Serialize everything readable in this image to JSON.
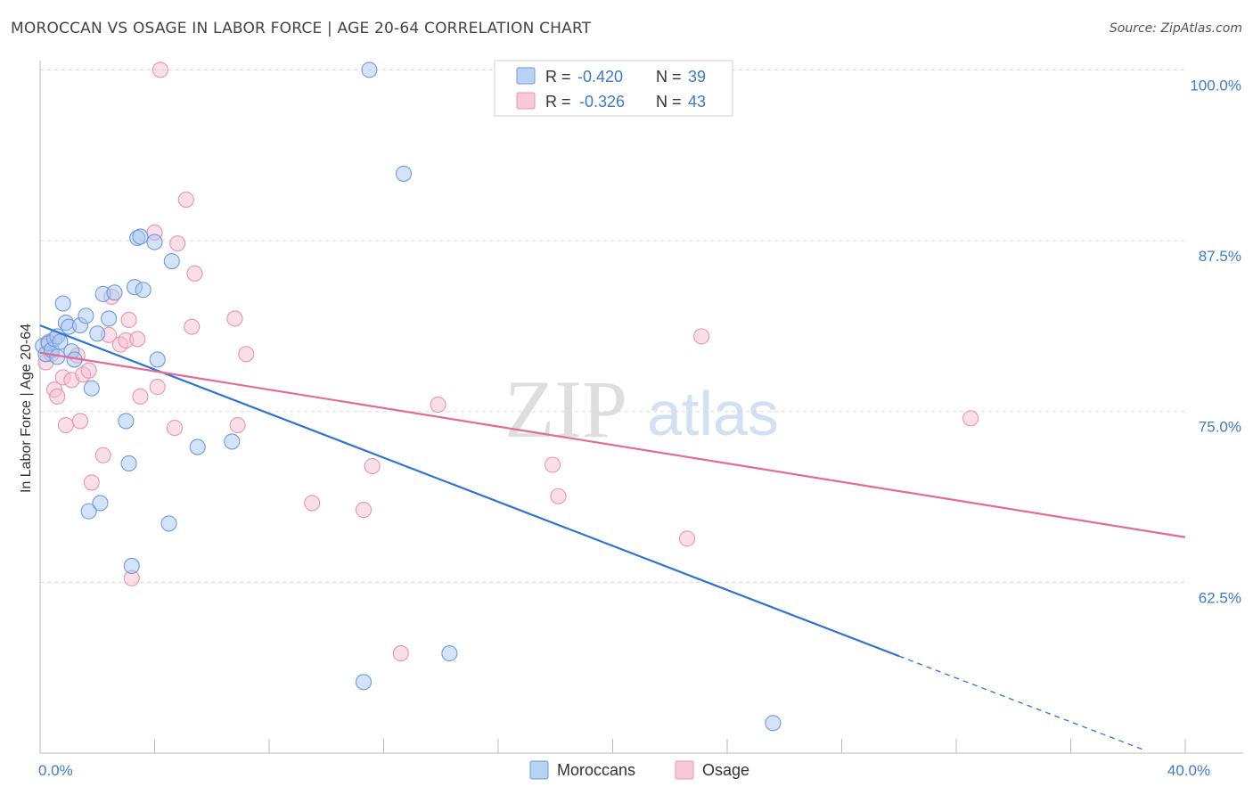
{
  "header": {
    "title": "MOROCCAN VS OSAGE IN LABOR FORCE | AGE 20-64 CORRELATION CHART",
    "source": "Source: ZipAtlas.com"
  },
  "watermark": {
    "zip": "ZIP",
    "atlas": "atlas"
  },
  "stats_box": {
    "rows": [
      {
        "r_label": "R =",
        "r_value": "-0.420",
        "n_label": "N =",
        "n_value": "39"
      },
      {
        "r_label": "R =",
        "r_value": "-0.326",
        "n_label": "N =",
        "n_value": "43"
      }
    ]
  },
  "colors": {
    "blue_fill": "#a9c8f0",
    "blue_stroke": "#6d9be0",
    "blue_line": "#2f74d0",
    "pink_fill": "#f8c0d2",
    "pink_stroke": "#ea93b1",
    "pink_line": "#e46b96",
    "axis_text": "#3f78cf",
    "grid": "#d8d8d8"
  },
  "chart_data": {
    "type": "scatter",
    "title": "MOROCCAN VS OSAGE IN LABOR FORCE | AGE 20-64 CORRELATION CHART",
    "xlabel": "",
    "ylabel": "In Labor Force | Age 20-64",
    "xlim": [
      0,
      40
    ],
    "ylim": [
      50,
      101.2
    ],
    "x_tick_labels": [
      {
        "value": 0,
        "label": "0.0%"
      },
      {
        "value": 40,
        "label": "40.0%"
      }
    ],
    "x_minor_ticks": [
      4,
      8,
      12,
      16,
      20,
      24,
      28,
      32,
      36,
      40
    ],
    "y_ticks": [
      {
        "value": 100,
        "label": "100.0%"
      },
      {
        "value": 87.5,
        "label": "87.5%"
      },
      {
        "value": 75,
        "label": "75.0%"
      },
      {
        "value": 62.5,
        "label": "62.5%"
      }
    ],
    "legend": {
      "position": "bottom-center"
    },
    "series": [
      {
        "name": "Moroccans",
        "color": "blue",
        "points": [
          [
            0.1,
            79.8
          ],
          [
            0.2,
            79.2
          ],
          [
            0.3,
            80.0
          ],
          [
            0.4,
            79.5
          ],
          [
            0.5,
            80.3
          ],
          [
            0.6,
            79.0
          ],
          [
            0.6,
            80.5
          ],
          [
            0.7,
            80.1
          ],
          [
            0.8,
            82.9
          ],
          [
            0.9,
            81.5
          ],
          [
            1.0,
            81.2
          ],
          [
            1.1,
            79.4
          ],
          [
            1.2,
            78.8
          ],
          [
            1.4,
            81.3
          ],
          [
            1.6,
            82.0
          ],
          [
            1.8,
            76.7
          ],
          [
            2.0,
            80.7
          ],
          [
            2.2,
            83.6
          ],
          [
            2.4,
            81.8
          ],
          [
            2.6,
            83.7
          ],
          [
            3.0,
            74.3
          ],
          [
            3.1,
            71.2
          ],
          [
            3.2,
            63.7
          ],
          [
            3.3,
            84.1
          ],
          [
            3.4,
            87.7
          ],
          [
            3.5,
            87.8
          ],
          [
            3.6,
            83.9
          ],
          [
            4.0,
            87.4
          ],
          [
            4.1,
            78.8
          ],
          [
            4.5,
            66.8
          ],
          [
            4.6,
            86.0
          ],
          [
            5.5,
            72.4
          ],
          [
            6.7,
            72.8
          ],
          [
            1.7,
            67.7
          ],
          [
            2.1,
            68.3
          ],
          [
            11.3,
            55.2
          ],
          [
            11.5,
            100.0
          ],
          [
            12.7,
            92.4
          ],
          [
            14.3,
            57.3
          ],
          [
            25.6,
            52.2
          ]
        ]
      },
      {
        "name": "Osage",
        "color": "pink",
        "points": [
          [
            0.2,
            78.6
          ],
          [
            0.3,
            80.1
          ],
          [
            0.5,
            76.6
          ],
          [
            0.6,
            76.1
          ],
          [
            0.8,
            77.5
          ],
          [
            0.9,
            74.0
          ],
          [
            1.1,
            77.3
          ],
          [
            1.3,
            79.1
          ],
          [
            1.4,
            74.3
          ],
          [
            1.5,
            77.7
          ],
          [
            1.7,
            78.0
          ],
          [
            1.8,
            69.8
          ],
          [
            2.2,
            71.8
          ],
          [
            2.4,
            80.6
          ],
          [
            2.5,
            83.4
          ],
          [
            2.8,
            79.9
          ],
          [
            3.0,
            80.2
          ],
          [
            3.1,
            81.7
          ],
          [
            3.2,
            62.8
          ],
          [
            3.4,
            80.3
          ],
          [
            3.5,
            76.1
          ],
          [
            4.0,
            88.1
          ],
          [
            4.1,
            76.8
          ],
          [
            4.2,
            100.0
          ],
          [
            4.7,
            73.8
          ],
          [
            4.8,
            87.3
          ],
          [
            5.1,
            90.5
          ],
          [
            5.3,
            81.2
          ],
          [
            5.4,
            85.1
          ],
          [
            6.8,
            81.8
          ],
          [
            6.9,
            74.0
          ],
          [
            7.2,
            79.2
          ],
          [
            9.5,
            68.3
          ],
          [
            11.3,
            67.8
          ],
          [
            11.6,
            71.0
          ],
          [
            12.6,
            57.3
          ],
          [
            13.9,
            75.5
          ],
          [
            17.9,
            71.1
          ],
          [
            18.1,
            68.8
          ],
          [
            22.6,
            65.7
          ],
          [
            23.1,
            80.5
          ],
          [
            32.5,
            74.5
          ],
          [
            0.4,
            79.2
          ]
        ]
      }
    ],
    "trend_lines": [
      {
        "series": "Moroccans",
        "x0": 0.0,
        "y0": 81.3,
        "x1": 30.0,
        "y1": 57.1,
        "dashed_to_x": 38.6,
        "dashed_to_y": 50.2
      },
      {
        "series": "Osage",
        "x0": 0.0,
        "y0": 79.3,
        "x1": 40.0,
        "y1": 65.8
      }
    ]
  }
}
